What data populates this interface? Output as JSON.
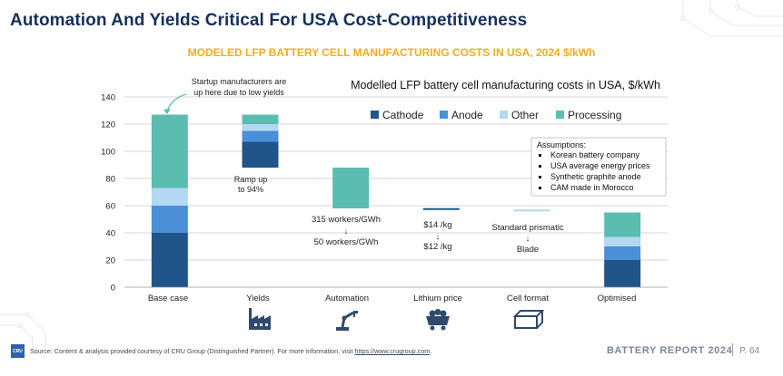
{
  "page": {
    "title": "Automation And Yields Critical For USA Cost-Competitiveness",
    "subtitle": "MODELED LFP BATTERY CELL MANUFACTURING COSTS IN USA, 2024 $/kWh"
  },
  "footer": {
    "logo_text": "CRU",
    "source_text": "Source: Content & analysis provided courtesy of CRU Group (Distinguished Partner). For more information, visit ",
    "source_link": "https://www.crugroup.com",
    "source_end": ".",
    "report_label": "BATTERY REPORT 2024",
    "page_number": "P. 64"
  },
  "colors": {
    "title": "#16305a",
    "subtitle": "#f0ad1e",
    "cathode": "#1f5589",
    "anode": "#4a90d9",
    "other": "#b3d8f2",
    "processing": "#5bbdb0"
  },
  "chart_data": {
    "type": "bar",
    "subtype": "waterfall",
    "title": "Modelled LFP battery cell manufacturing costs in USA, $/kWh",
    "ylim": [
      0,
      140
    ],
    "yticks": [
      "0",
      "20",
      "40",
      "60",
      "80",
      "100",
      "120",
      "140"
    ],
    "grid": true,
    "legend_position": "top-right",
    "legend": [
      "Cathode",
      "Anode",
      "Other",
      "Processing"
    ],
    "categories": [
      "Base case",
      "Yields",
      "Automation",
      "Lithium price",
      "Cell format",
      "Optimised"
    ],
    "category_icons": [
      "",
      "factory-icon",
      "robot-arm-icon",
      "mine-cart-icon",
      "battery-cell-icon",
      ""
    ],
    "bars": [
      {
        "category": "Base case",
        "kind": "stacked",
        "segments": [
          {
            "series": "Cathode",
            "from": 0,
            "to": 40
          },
          {
            "series": "Anode",
            "from": 40,
            "to": 60
          },
          {
            "series": "Other",
            "from": 60,
            "to": 73
          },
          {
            "series": "Processing",
            "from": 73,
            "to": 127
          }
        ]
      },
      {
        "category": "Yields",
        "kind": "floating",
        "segments": [
          {
            "series": "Cathode",
            "from": 88,
            "to": 107
          },
          {
            "series": "Anode",
            "from": 107,
            "to": 115
          },
          {
            "series": "Other",
            "from": 115,
            "to": 120
          },
          {
            "series": "Processing",
            "from": 120,
            "to": 127
          }
        ]
      },
      {
        "category": "Automation",
        "kind": "floating",
        "segments": [
          {
            "series": "Processing",
            "from": 58,
            "to": 88
          }
        ]
      },
      {
        "category": "Lithium price",
        "kind": "floating",
        "segments": [
          {
            "series": "Cathode",
            "from": 57,
            "to": 58
          }
        ]
      },
      {
        "category": "Cell format",
        "kind": "floating",
        "segments": [
          {
            "series": "Other",
            "from": 56,
            "to": 57
          }
        ]
      },
      {
        "category": "Optimised",
        "kind": "stacked",
        "segments": [
          {
            "series": "Cathode",
            "from": 0,
            "to": 20
          },
          {
            "series": "Anode",
            "from": 20,
            "to": 30
          },
          {
            "series": "Other",
            "from": 30,
            "to": 37
          },
          {
            "series": "Processing",
            "from": 37,
            "to": 55
          }
        ]
      }
    ],
    "annotations": [
      {
        "id": "startup",
        "text": "Startup manufacturers are up here due to low yields",
        "lines": [
          "Startup manufacturers are",
          "up here due to low yields"
        ],
        "arrow_to": "Base case"
      },
      {
        "id": "yields",
        "text": "Ramp up to 94%",
        "lines": [
          "Ramp up",
          "to 94%"
        ]
      },
      {
        "id": "automation",
        "text": "315 workers/GWh → 50 workers/GWh",
        "lines": [
          "315 workers/GWh",
          "↓",
          "50 workers/GWh"
        ]
      },
      {
        "id": "lithium",
        "text": "$14 /kg → $12 /kg",
        "lines": [
          "$14 /kg",
          "↓",
          "$12 /kg"
        ]
      },
      {
        "id": "cellformat",
        "text": "Standard prismatic → Blade",
        "lines": [
          "Standard prismatic",
          "↓",
          "Blade"
        ]
      }
    ],
    "assumptions": {
      "title": "Assumptions:",
      "items": [
        "Korean battery company",
        "USA average energy prices",
        "Synthetic graphite anode",
        "CAM made in Morocco"
      ]
    }
  }
}
